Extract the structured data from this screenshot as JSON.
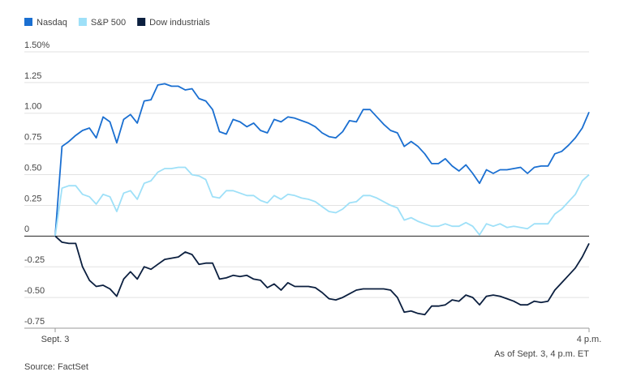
{
  "chart_data": {
    "type": "line",
    "categories": [
      "Sept. 3",
      null,
      null,
      null,
      null,
      null,
      null,
      null,
      null,
      null,
      null,
      null,
      null,
      null,
      null,
      null,
      null,
      null,
      null,
      null,
      null,
      null,
      null,
      null,
      null,
      null,
      null,
      null,
      null,
      null,
      null,
      null,
      null,
      null,
      null,
      null,
      null,
      null,
      null,
      null,
      null,
      null,
      null,
      null,
      null,
      null,
      null,
      null,
      null,
      null,
      null,
      null,
      null,
      null,
      null,
      null,
      null,
      null,
      null,
      null,
      null,
      null,
      null,
      null,
      null,
      null,
      null,
      null,
      null,
      null,
      null,
      null,
      null,
      null,
      null,
      null,
      null,
      null,
      "4 p.m."
    ],
    "series": [
      {
        "name": "Nasdaq",
        "color": "#1a6fd1",
        "values": [
          0,
          0.73,
          0.77,
          0.82,
          0.86,
          0.88,
          0.8,
          0.97,
          0.93,
          0.76,
          0.95,
          0.99,
          0.92,
          1.1,
          1.11,
          1.23,
          1.24,
          1.22,
          1.22,
          1.19,
          1.2,
          1.12,
          1.1,
          1.03,
          0.85,
          0.83,
          0.95,
          0.93,
          0.89,
          0.92,
          0.86,
          0.84,
          0.95,
          0.93,
          0.97,
          0.96,
          0.94,
          0.92,
          0.89,
          0.84,
          0.81,
          0.8,
          0.85,
          0.94,
          0.93,
          1.03,
          1.03,
          0.97,
          0.91,
          0.86,
          0.84,
          0.73,
          0.77,
          0.73,
          0.67,
          0.59,
          0.59,
          0.63,
          0.57,
          0.53,
          0.58,
          0.51,
          0.43,
          0.54,
          0.51,
          0.54,
          0.54,
          0.55,
          0.56,
          0.51,
          0.56,
          0.57,
          0.57,
          0.67,
          0.69,
          0.74,
          0.8,
          0.88,
          1.01
        ]
      },
      {
        "name": "S&P 500",
        "color": "#9ee0f8",
        "values": [
          0,
          0.39,
          0.41,
          0.41,
          0.34,
          0.32,
          0.26,
          0.34,
          0.32,
          0.2,
          0.35,
          0.37,
          0.3,
          0.43,
          0.45,
          0.52,
          0.55,
          0.55,
          0.56,
          0.56,
          0.5,
          0.49,
          0.46,
          0.32,
          0.31,
          0.37,
          0.37,
          0.35,
          0.33,
          0.33,
          0.29,
          0.27,
          0.33,
          0.3,
          0.34,
          0.33,
          0.31,
          0.3,
          0.28,
          0.24,
          0.2,
          0.19,
          0.22,
          0.27,
          0.28,
          0.33,
          0.33,
          0.31,
          0.28,
          0.25,
          0.23,
          0.13,
          0.15,
          0.12,
          0.1,
          0.08,
          0.08,
          0.1,
          0.08,
          0.08,
          0.11,
          0.08,
          0.01,
          0.1,
          0.08,
          0.1,
          0.07,
          0.08,
          0.07,
          0.06,
          0.1,
          0.1,
          0.1,
          0.18,
          0.22,
          0.28,
          0.34,
          0.45,
          0.5
        ]
      },
      {
        "name": "Dow industrials",
        "color": "#0b1f3f",
        "values": [
          0,
          -0.05,
          -0.06,
          -0.06,
          -0.25,
          -0.36,
          -0.41,
          -0.4,
          -0.43,
          -0.49,
          -0.35,
          -0.29,
          -0.35,
          -0.25,
          -0.27,
          -0.23,
          -0.19,
          -0.18,
          -0.17,
          -0.13,
          -0.15,
          -0.23,
          -0.22,
          -0.22,
          -0.35,
          -0.34,
          -0.32,
          -0.33,
          -0.32,
          -0.35,
          -0.36,
          -0.42,
          -0.39,
          -0.44,
          -0.38,
          -0.41,
          -0.41,
          -0.41,
          -0.42,
          -0.46,
          -0.51,
          -0.52,
          -0.5,
          -0.47,
          -0.44,
          -0.43,
          -0.43,
          -0.43,
          -0.43,
          -0.44,
          -0.5,
          -0.62,
          -0.61,
          -0.63,
          -0.64,
          -0.57,
          -0.57,
          -0.56,
          -0.52,
          -0.53,
          -0.48,
          -0.5,
          -0.56,
          -0.49,
          -0.48,
          -0.49,
          -0.51,
          -0.53,
          -0.56,
          -0.56,
          -0.53,
          -0.54,
          -0.53,
          -0.44,
          -0.38,
          -0.32,
          -0.26,
          -0.17,
          -0.06
        ]
      }
    ],
    "ylim": [
      -0.75,
      1.5
    ],
    "yticks": [
      {
        "value": 1.5,
        "label": "1.50%"
      },
      1.25,
      {
        "value": 1,
        "label": "1.00"
      },
      0.75,
      {
        "value": 0.5,
        "label": "0.50"
      },
      0.25,
      0,
      -0.25,
      {
        "value": -0.5,
        "label": "-0.50"
      },
      -0.75
    ],
    "grid": true,
    "legend": "top-left",
    "note": "As of Sept. 3, 4 p.m. ET",
    "source": "Source: FactSet"
  }
}
